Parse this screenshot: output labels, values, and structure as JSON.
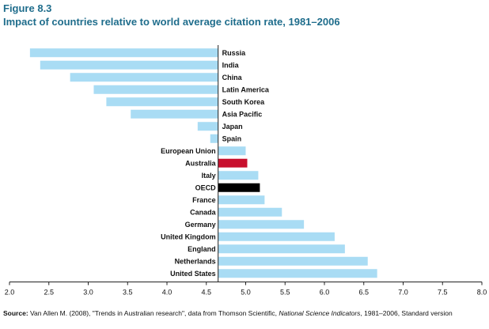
{
  "figure_label": "Figure 8.3",
  "chart_data": {
    "type": "bar",
    "orientation": "horizontal",
    "title": "Impact of countries relative to world average citation rate, 1981–2006",
    "baseline": 4.65,
    "xlim": [
      2.0,
      8.0
    ],
    "x_ticks": [
      "2.0",
      "2.5",
      "3.0",
      "3.5",
      "4.0",
      "4.5",
      "5.0",
      "5.5",
      "6.0",
      "6.5",
      "7.0",
      "7.5",
      "8.0"
    ],
    "categories": [
      "Russia",
      "India",
      "China",
      "Latin America",
      "South Korea",
      "Asia Pacific",
      "Japan",
      "Spain",
      "European Union",
      "Australia",
      "Italy",
      "OECD",
      "France",
      "Canada",
      "Germany",
      "United Kingdom",
      "England",
      "Netherlands",
      "United States"
    ],
    "values": [
      2.26,
      2.39,
      2.77,
      3.07,
      3.23,
      3.54,
      4.39,
      4.55,
      5.0,
      5.02,
      5.16,
      5.18,
      5.24,
      5.46,
      5.74,
      6.13,
      6.26,
      6.55,
      6.67
    ],
    "highlight": {
      "Australia": "#c8102e",
      "OECD": "#000000"
    },
    "bar_color": "#a9dcf4",
    "grid": false
  },
  "source": {
    "prefix": "Source:",
    "text1": " Van Allen M. (2008), \"Trends in Australian research\", data from Thomson Scientific, ",
    "italic": "National Science Indicators",
    "text2": ", 1981–2006, Standard version"
  }
}
